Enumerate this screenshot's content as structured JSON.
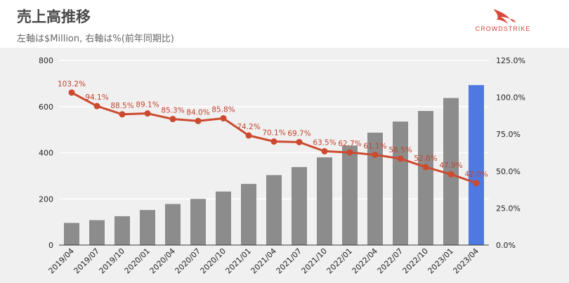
{
  "header": {
    "title": "売上高推移",
    "subtitle": "左軸は$Million, 右軸は%(前年同期比)",
    "brand": "CROWDSTRIKE"
  },
  "colors": {
    "bar": "#8c8c8c",
    "bar_highlight": "#4f79e0",
    "line": "#cc4a2f",
    "background": "#f0f0f0",
    "grid": "#ffffff"
  },
  "chart_data": {
    "type": "bar",
    "categories": [
      "2019/04",
      "2019/07",
      "2019/10",
      "2020/01",
      "2020/04",
      "2020/07",
      "2020/10",
      "2021/01",
      "2021/04",
      "2021/07",
      "2021/10",
      "2022/01",
      "2022/04",
      "2022/07",
      "2022/10",
      "2023/01",
      "2023/04"
    ],
    "series": [
      {
        "type": "bar",
        "axis": "left",
        "values": [
          96,
          108,
          125,
          152,
          178,
          200,
          232,
          265,
          303,
          338,
          380,
          431,
          487,
          535,
          581,
          637,
          693
        ]
      },
      {
        "type": "line",
        "axis": "right",
        "values": [
          103.2,
          94.1,
          88.5,
          89.1,
          85.3,
          84.0,
          85.8,
          74.2,
          70.1,
          69.7,
          63.5,
          62.7,
          61.1,
          58.5,
          52.8,
          47.9,
          42.0
        ],
        "labels": [
          "103.2%",
          "94.1%",
          "88.5%",
          "89.1%",
          "85.3%",
          "84.0%",
          "85.8%",
          "74.2%",
          "70.1%",
          "69.7%",
          "63.5%",
          "62.7%",
          "61.1%",
          "58.5%",
          "52.8%",
          "47.9%",
          "42.0%"
        ]
      }
    ],
    "left_axis": {
      "ylim": [
        0,
        800
      ],
      "ticks": [
        "0",
        "200",
        "400",
        "600",
        "800"
      ]
    },
    "right_axis": {
      "ylim": [
        0,
        125
      ],
      "ticks": [
        "0.0%",
        "25.0%",
        "50.0%",
        "75.0%",
        "100.0%",
        "125.0%"
      ]
    },
    "highlight_last_bar": true,
    "grid": true,
    "legend": "none"
  }
}
